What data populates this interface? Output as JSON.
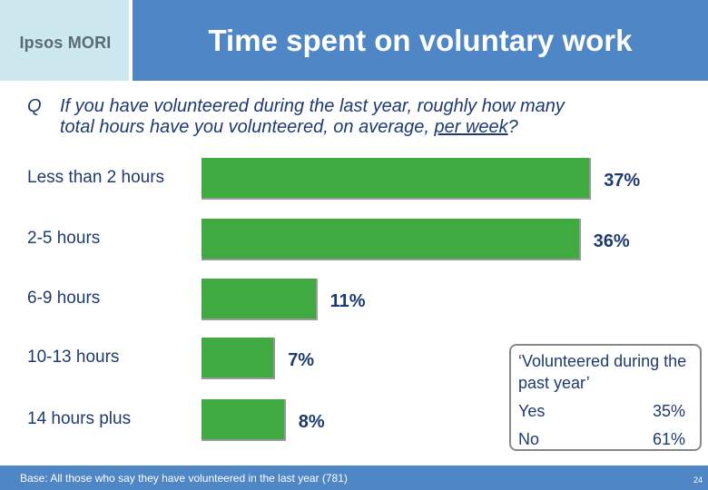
{
  "header": {
    "logo": "Ipsos MORI",
    "title": "Time spent on voluntary work"
  },
  "question": {
    "letter": "Q",
    "line1": "If you have volunteered during the last year, roughly how many",
    "line2_prefix": "total hours have you volunteered, on average, ",
    "line2_underlined": "per week",
    "line2_suffix": "?"
  },
  "chart_data": {
    "type": "bar",
    "orientation": "horizontal",
    "categories": [
      "Less than 2 hours",
      "2-5 hours",
      "6-9 hours",
      "10-13 hours",
      "14 hours plus"
    ],
    "values": [
      37,
      36,
      11,
      7,
      8
    ],
    "value_labels": [
      "37%",
      "36%",
      "11%",
      "7%",
      "8%"
    ],
    "unit": "%",
    "color": "#3faa3f"
  },
  "inset": {
    "title": "‘Volunteered during the past year’",
    "rows": [
      {
        "label": "Yes",
        "value": "35%"
      },
      {
        "label": "No",
        "value": "61%"
      }
    ]
  },
  "footer": {
    "base": "Base: All those who say they have volunteered in the last year (781)",
    "page": "24"
  }
}
